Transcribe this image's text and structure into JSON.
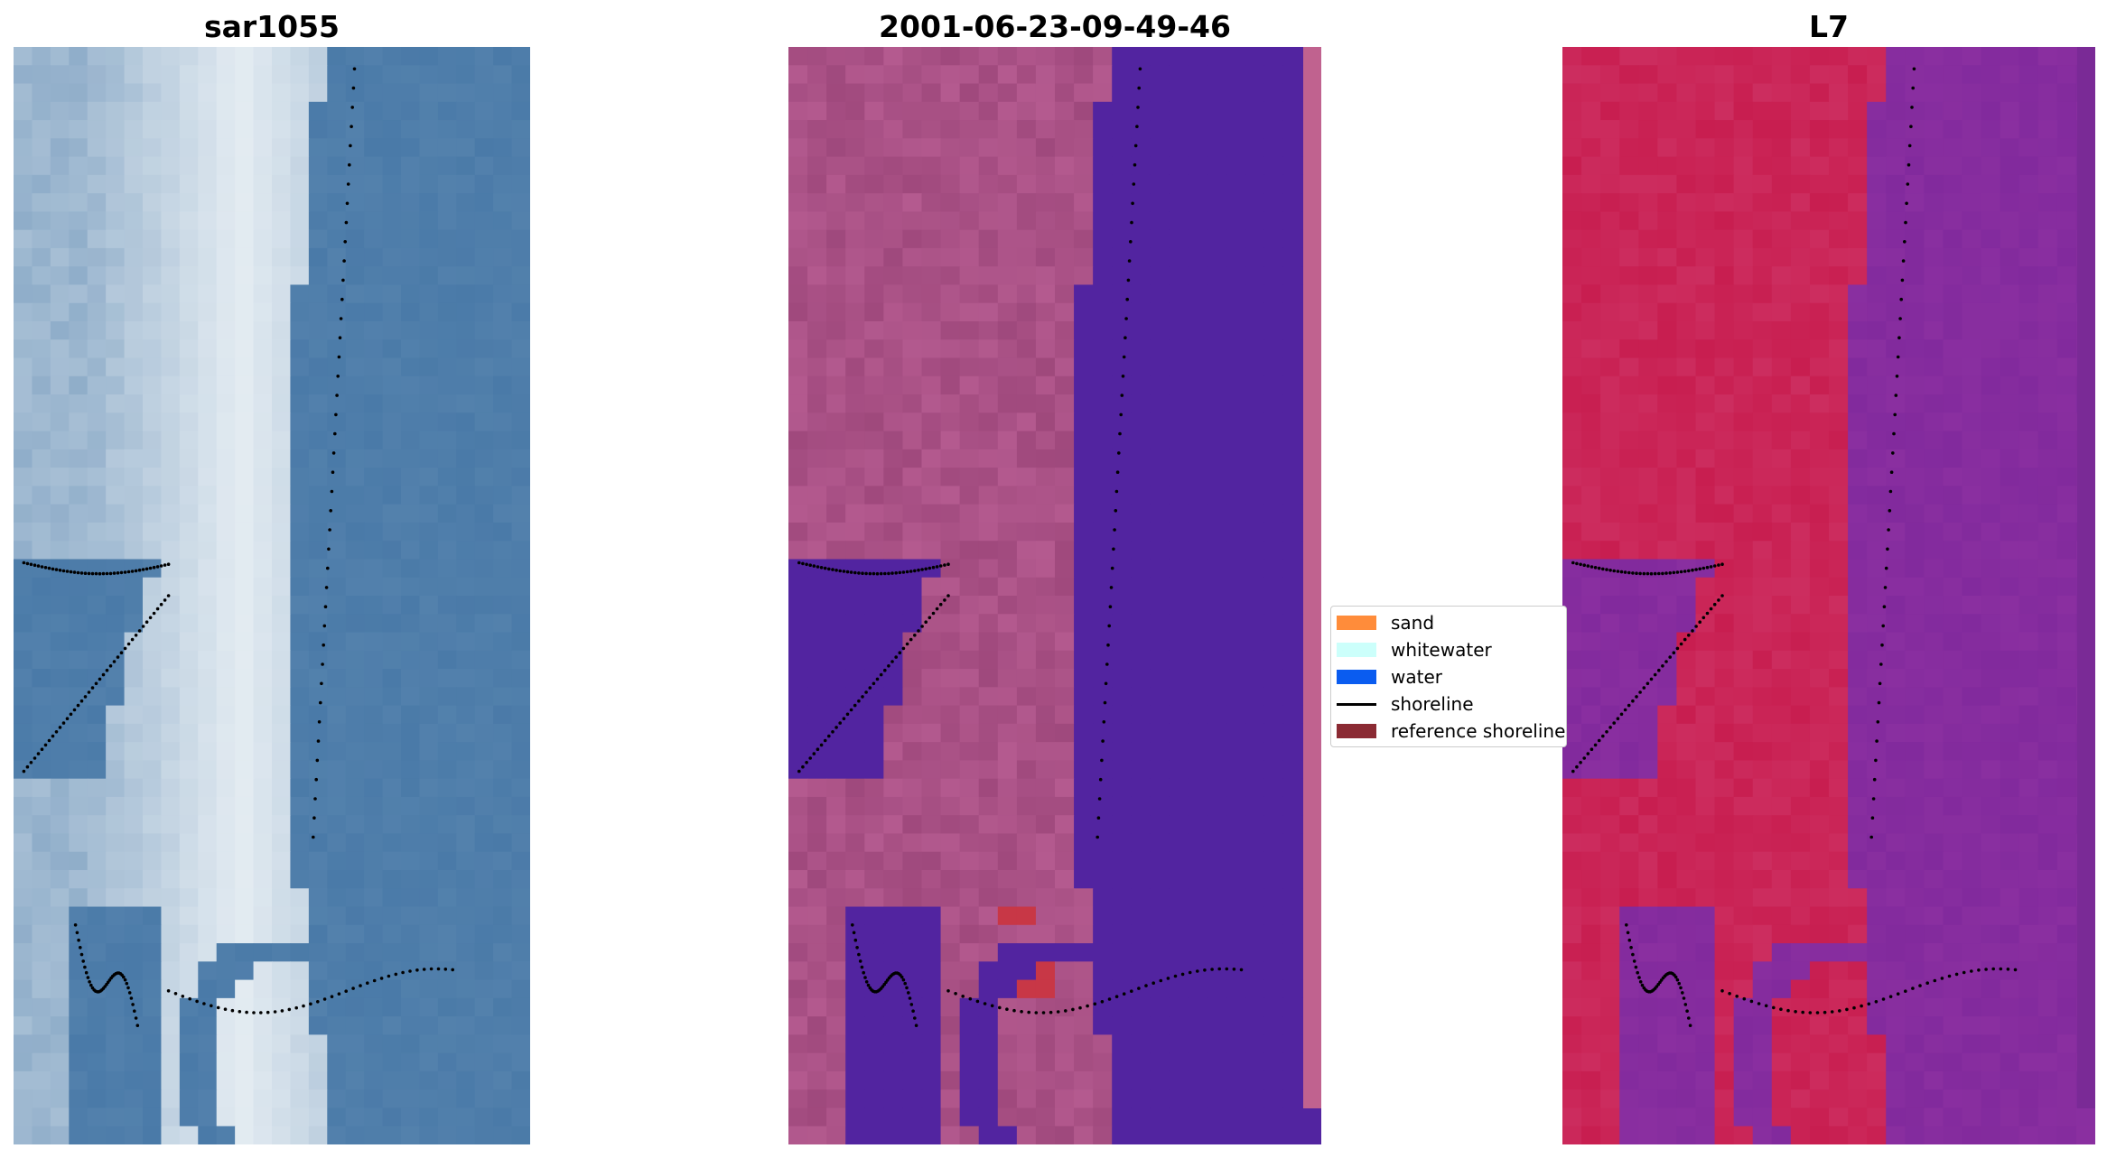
{
  "panels": [
    {
      "title": "sar1055",
      "palette": "rgb"
    },
    {
      "title": "2001-06-23-09-49-46",
      "palette": "classified"
    },
    {
      "title": "L7",
      "palette": "index"
    }
  ],
  "legend": {
    "items": [
      {
        "label": "sand",
        "color": "#ff8c3a",
        "kind": "patch"
      },
      {
        "label": "whitewater",
        "color": "#ccfffb",
        "kind": "patch"
      },
      {
        "label": "water",
        "color": "#0a5cf0",
        "kind": "patch"
      },
      {
        "label": "shoreline",
        "color": "#000000",
        "kind": "line"
      },
      {
        "label": "reference shoreline",
        "color": "#8b2a33",
        "kind": "patch"
      }
    ]
  },
  "colors": {
    "rgb_water": "#4a7aa8",
    "rgb_sand": "#e4ecf2",
    "class_water": "#5224a0",
    "class_land": "#b45a8f",
    "index_land": "#c81e50",
    "index_water": "#8a2fa0",
    "shoreline": "#000000"
  }
}
